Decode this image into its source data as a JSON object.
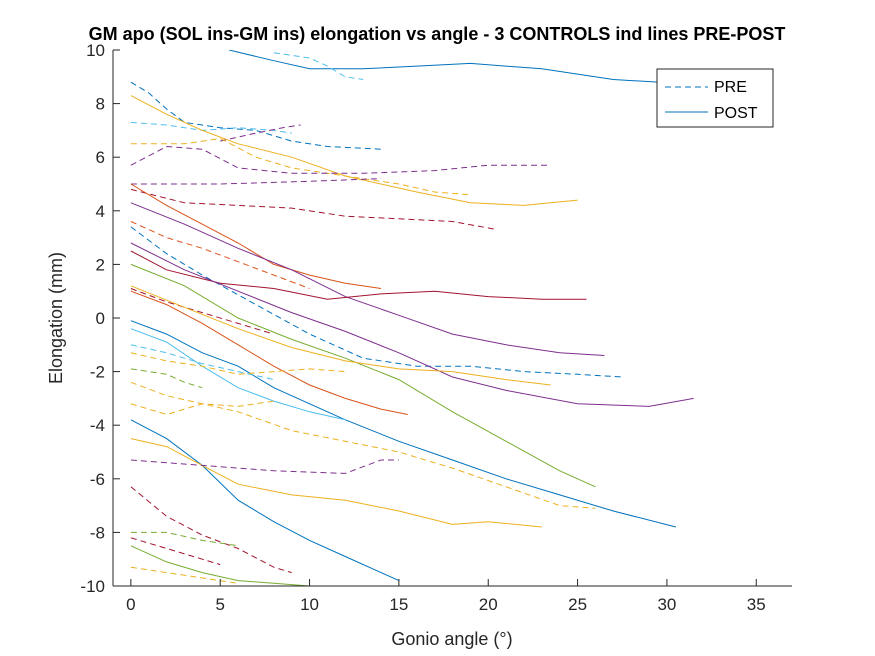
{
  "chart_data": {
    "type": "line",
    "title": "GM apo (SOL ins-GM ins) elongation vs angle - 3 CONTROLS ind lines PRE-POST",
    "xlabel": "Gonio angle (°)",
    "ylabel": "Elongation (mm)",
    "xlim": [
      -1,
      37
    ],
    "ylim": [
      -10,
      10
    ],
    "xticks": [
      0,
      5,
      10,
      15,
      20,
      25,
      30,
      35
    ],
    "yticks": [
      10,
      8,
      6,
      4,
      2,
      0,
      -2,
      -4,
      -6,
      -8,
      -10
    ],
    "grid": false,
    "legend_position": "top-right",
    "legend": [
      {
        "label": "PRE",
        "style": "dashed"
      },
      {
        "label": "POST",
        "style": "solid"
      }
    ],
    "series": [
      {
        "style": "solid",
        "color": "#0072BD",
        "points": [
          [
            5.5,
            10
          ],
          [
            8,
            9.6
          ],
          [
            10,
            9.3
          ],
          [
            13,
            9.3
          ],
          [
            16,
            9.4
          ],
          [
            19,
            9.5
          ],
          [
            23,
            9.3
          ],
          [
            27,
            8.9
          ],
          [
            32,
            8.7
          ]
        ]
      },
      {
        "style": "dashed",
        "color": "#4DBEEE",
        "points": [
          [
            8,
            9.9
          ],
          [
            10,
            9.7
          ],
          [
            11,
            9.4
          ],
          [
            12,
            9.0
          ],
          [
            13,
            8.9
          ]
        ]
      },
      {
        "style": "dashed",
        "color": "#0072BD",
        "points": [
          [
            0,
            8.8
          ],
          [
            1,
            8.4
          ],
          [
            2,
            7.8
          ],
          [
            3,
            7.3
          ],
          [
            5,
            7.1
          ],
          [
            7,
            7.0
          ],
          [
            9,
            6.6
          ],
          [
            11,
            6.4
          ],
          [
            14,
            6.3
          ]
        ]
      },
      {
        "style": "dashed",
        "color": "#4DBEEE",
        "points": [
          [
            0,
            7.3
          ],
          [
            2,
            7.2
          ],
          [
            4,
            7.0
          ],
          [
            6,
            7.1
          ],
          [
            8,
            7.0
          ],
          [
            9,
            6.9
          ]
        ]
      },
      {
        "style": "dashed",
        "color": "#7E2F8E",
        "points": [
          [
            5,
            6.6
          ],
          [
            7,
            6.9
          ],
          [
            8.5,
            7.1
          ],
          [
            9.5,
            7.2
          ]
        ]
      },
      {
        "style": "solid",
        "color": "#EDB120",
        "points": [
          [
            0,
            8.3
          ],
          [
            2,
            7.6
          ],
          [
            4,
            7.0
          ],
          [
            6,
            6.5
          ],
          [
            9,
            6.0
          ],
          [
            12,
            5.3
          ],
          [
            16,
            4.7
          ],
          [
            19,
            4.3
          ],
          [
            22,
            4.2
          ],
          [
            25,
            4.4
          ]
        ]
      },
      {
        "style": "dashed",
        "color": "#EDB120",
        "points": [
          [
            0,
            6.5
          ],
          [
            3,
            6.5
          ],
          [
            5,
            6.7
          ],
          [
            7,
            6.0
          ],
          [
            9,
            5.6
          ],
          [
            12,
            5.3
          ],
          [
            15,
            5.0
          ],
          [
            17,
            4.7
          ],
          [
            19,
            4.6
          ]
        ]
      },
      {
        "style": "dashed",
        "color": "#7E2F8E",
        "points": [
          [
            0,
            5.7
          ],
          [
            2,
            6.4
          ],
          [
            4,
            6.3
          ],
          [
            6,
            5.6
          ],
          [
            9,
            5.4
          ],
          [
            13,
            5.4
          ],
          [
            17,
            5.5
          ],
          [
            20,
            5.7
          ],
          [
            23.5,
            5.7
          ]
        ]
      },
      {
        "style": "dashed",
        "color": "#7E2F8E",
        "points": [
          [
            0,
            5.0
          ],
          [
            5,
            5.0
          ],
          [
            10,
            5.1
          ],
          [
            14,
            5.2
          ]
        ]
      },
      {
        "style": "dashed",
        "color": "#A2142F",
        "points": [
          [
            0,
            4.8
          ],
          [
            3,
            4.3
          ],
          [
            6,
            4.2
          ],
          [
            9,
            4.1
          ],
          [
            12,
            3.8
          ],
          [
            15,
            3.7
          ],
          [
            18,
            3.6
          ],
          [
            20.5,
            3.3
          ]
        ]
      },
      {
        "style": "solid",
        "color": "#D95319",
        "points": [
          [
            0,
            5.0
          ],
          [
            2,
            4.2
          ],
          [
            4,
            3.5
          ],
          [
            6,
            2.8
          ],
          [
            8,
            2.0
          ],
          [
            10,
            1.6
          ],
          [
            12,
            1.3
          ],
          [
            14,
            1.1
          ]
        ]
      },
      {
        "style": "solid",
        "color": "#7E2F8E",
        "points": [
          [
            0,
            4.3
          ],
          [
            3,
            3.5
          ],
          [
            6,
            2.6
          ],
          [
            9,
            1.8
          ],
          [
            12,
            0.8
          ],
          [
            15,
            0.1
          ],
          [
            18,
            -0.6
          ],
          [
            21,
            -1.0
          ],
          [
            24,
            -1.3
          ],
          [
            26.5,
            -1.4
          ]
        ]
      },
      {
        "style": "dashed",
        "color": "#D95319",
        "points": [
          [
            0,
            3.6
          ],
          [
            2,
            3.0
          ],
          [
            4,
            2.6
          ],
          [
            6,
            2.1
          ],
          [
            8,
            1.6
          ],
          [
            10,
            1.1
          ]
        ]
      },
      {
        "style": "dashed",
        "color": "#0072BD",
        "points": [
          [
            0,
            3.4
          ],
          [
            2,
            2.4
          ],
          [
            4,
            1.6
          ],
          [
            7,
            0.5
          ],
          [
            10,
            -0.6
          ],
          [
            13,
            -1.5
          ],
          [
            16,
            -1.8
          ],
          [
            19,
            -1.8
          ],
          [
            22,
            -2.0
          ],
          [
            25,
            -2.1
          ],
          [
            27.5,
            -2.2
          ]
        ]
      },
      {
        "style": "solid",
        "color": "#77AC30",
        "points": [
          [
            0,
            2.0
          ],
          [
            3,
            1.2
          ],
          [
            6,
            0.0
          ],
          [
            9,
            -0.8
          ],
          [
            12,
            -1.5
          ],
          [
            15,
            -2.3
          ],
          [
            18,
            -3.5
          ],
          [
            21,
            -4.6
          ],
          [
            24,
            -5.7
          ],
          [
            26,
            -6.3
          ]
        ]
      },
      {
        "style": "solid",
        "color": "#A2142F",
        "points": [
          [
            0,
            2.5
          ],
          [
            2,
            1.8
          ],
          [
            5,
            1.3
          ],
          [
            8,
            1.1
          ],
          [
            11,
            0.7
          ],
          [
            14,
            0.9
          ],
          [
            17,
            1.0
          ],
          [
            20,
            0.8
          ],
          [
            23,
            0.7
          ],
          [
            25.5,
            0.7
          ]
        ]
      },
      {
        "style": "solid",
        "color": "#7E2F8E",
        "points": [
          [
            0,
            2.8
          ],
          [
            3,
            1.8
          ],
          [
            6,
            1.0
          ],
          [
            9,
            0.2
          ],
          [
            12,
            -0.5
          ],
          [
            15,
            -1.3
          ],
          [
            18,
            -2.2
          ],
          [
            21,
            -2.7
          ],
          [
            25,
            -3.2
          ],
          [
            29,
            -3.3
          ],
          [
            31.5,
            -3.0
          ]
        ]
      },
      {
        "style": "dashed",
        "color": "#A2142F",
        "points": [
          [
            0,
            1.1
          ],
          [
            2,
            0.6
          ],
          [
            4,
            0.2
          ],
          [
            6,
            -0.2
          ],
          [
            8,
            -0.6
          ]
        ]
      },
      {
        "style": "solid",
        "color": "#EDB120",
        "points": [
          [
            0,
            1.2
          ],
          [
            3,
            0.4
          ],
          [
            6,
            -0.4
          ],
          [
            9,
            -1.1
          ],
          [
            12,
            -1.6
          ],
          [
            15,
            -1.9
          ],
          [
            18,
            -2.0
          ],
          [
            21,
            -2.3
          ],
          [
            23.5,
            -2.5
          ]
        ]
      },
      {
        "style": "solid",
        "color": "#D95319",
        "points": [
          [
            0,
            1.0
          ],
          [
            2,
            0.5
          ],
          [
            4,
            -0.2
          ],
          [
            6,
            -1.0
          ],
          [
            8,
            -1.8
          ],
          [
            10,
            -2.5
          ],
          [
            12,
            -3.0
          ],
          [
            14,
            -3.4
          ],
          [
            15.5,
            -3.6
          ]
        ]
      },
      {
        "style": "solid",
        "color": "#0072BD",
        "points": [
          [
            0,
            -0.1
          ],
          [
            2,
            -0.6
          ],
          [
            4,
            -1.3
          ],
          [
            6,
            -1.8
          ],
          [
            8,
            -2.6
          ],
          [
            10,
            -3.2
          ],
          [
            12,
            -3.8
          ],
          [
            15,
            -4.6
          ],
          [
            18,
            -5.3
          ],
          [
            21,
            -6.0
          ],
          [
            24,
            -6.6
          ],
          [
            27,
            -7.2
          ],
          [
            30.5,
            -7.8
          ]
        ]
      },
      {
        "style": "solid",
        "color": "#4DBEEE",
        "points": [
          [
            0,
            -0.4
          ],
          [
            2,
            -0.9
          ],
          [
            4,
            -1.8
          ],
          [
            6,
            -2.6
          ],
          [
            8,
            -3.1
          ],
          [
            10,
            -3.5
          ],
          [
            12,
            -3.8
          ]
        ]
      },
      {
        "style": "dashed",
        "color": "#4DBEEE",
        "points": [
          [
            0,
            -1.0
          ],
          [
            2,
            -1.3
          ],
          [
            4,
            -1.7
          ],
          [
            6,
            -2.0
          ],
          [
            8,
            -2.3
          ]
        ]
      },
      {
        "style": "dashed",
        "color": "#EDB120",
        "points": [
          [
            0,
            -1.3
          ],
          [
            2,
            -1.6
          ],
          [
            4,
            -1.8
          ],
          [
            6,
            -2.1
          ],
          [
            8,
            -2.0
          ],
          [
            10,
            -1.9
          ],
          [
            12,
            -2.0
          ]
        ]
      },
      {
        "style": "dashed",
        "color": "#77AC30",
        "points": [
          [
            0,
            -1.9
          ],
          [
            2,
            -2.1
          ],
          [
            3,
            -2.4
          ],
          [
            4,
            -2.6
          ]
        ]
      },
      {
        "style": "dashed",
        "color": "#EDB120",
        "points": [
          [
            0,
            -2.4
          ],
          [
            2,
            -2.9
          ],
          [
            4,
            -3.2
          ],
          [
            6,
            -3.5
          ],
          [
            9,
            -4.2
          ],
          [
            12,
            -4.6
          ],
          [
            15,
            -5.0
          ],
          [
            18,
            -5.6
          ],
          [
            21,
            -6.3
          ],
          [
            24,
            -7.0
          ],
          [
            26,
            -7.1
          ]
        ]
      },
      {
        "style": "dashed",
        "color": "#EDB120",
        "points": [
          [
            0,
            -3.2
          ],
          [
            2,
            -3.6
          ],
          [
            4,
            -3.2
          ],
          [
            6,
            -3.3
          ],
          [
            8,
            -3.1
          ]
        ]
      },
      {
        "style": "solid",
        "color": "#0072BD",
        "points": [
          [
            0,
            -3.8
          ],
          [
            2,
            -4.5
          ],
          [
            4,
            -5.5
          ],
          [
            6,
            -6.8
          ],
          [
            8,
            -7.6
          ],
          [
            10,
            -8.3
          ],
          [
            12,
            -8.9
          ],
          [
            14,
            -9.5
          ],
          [
            15,
            -9.8
          ]
        ]
      },
      {
        "style": "solid",
        "color": "#EDB120",
        "points": [
          [
            0,
            -4.5
          ],
          [
            2,
            -4.8
          ],
          [
            4,
            -5.5
          ],
          [
            6,
            -6.2
          ],
          [
            9,
            -6.6
          ],
          [
            12,
            -6.8
          ],
          [
            15,
            -7.2
          ],
          [
            18,
            -7.7
          ],
          [
            20,
            -7.6
          ],
          [
            23,
            -7.8
          ]
        ]
      },
      {
        "style": "dashed",
        "color": "#7E2F8E",
        "points": [
          [
            0,
            -5.3
          ],
          [
            4,
            -5.5
          ],
          [
            8,
            -5.7
          ],
          [
            12,
            -5.8
          ],
          [
            14,
            -5.3
          ],
          [
            15,
            -5.3
          ]
        ]
      },
      {
        "style": "dashed",
        "color": "#A2142F",
        "points": [
          [
            0,
            -6.3
          ],
          [
            2,
            -7.4
          ],
          [
            4,
            -8.1
          ],
          [
            6,
            -8.6
          ],
          [
            8,
            -9.3
          ],
          [
            9,
            -9.5
          ]
        ]
      },
      {
        "style": "dashed",
        "color": "#77AC30",
        "points": [
          [
            0,
            -8.0
          ],
          [
            2,
            -8.0
          ],
          [
            4,
            -8.3
          ],
          [
            6,
            -8.5
          ]
        ]
      },
      {
        "style": "dashed",
        "color": "#A2142F",
        "points": [
          [
            0,
            -8.2
          ],
          [
            2,
            -8.6
          ],
          [
            4,
            -9.0
          ],
          [
            5,
            -9.2
          ]
        ]
      },
      {
        "style": "solid",
        "color": "#77AC30",
        "points": [
          [
            0,
            -8.5
          ],
          [
            2,
            -9.1
          ],
          [
            4,
            -9.5
          ],
          [
            6,
            -9.8
          ],
          [
            8,
            -9.9
          ],
          [
            10,
            -10.0
          ]
        ]
      },
      {
        "style": "dashed",
        "color": "#EDB120",
        "points": [
          [
            0,
            -9.3
          ],
          [
            3,
            -9.6
          ],
          [
            6,
            -9.9
          ]
        ]
      }
    ]
  }
}
